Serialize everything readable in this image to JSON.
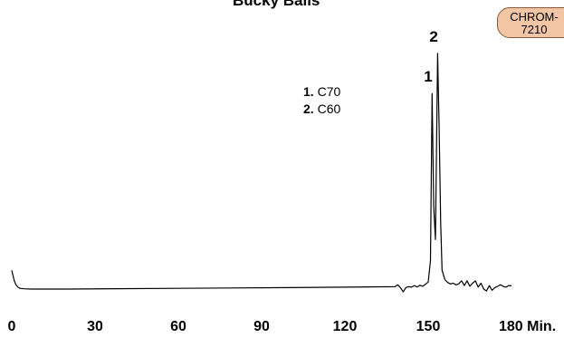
{
  "chart_data": {
    "type": "line",
    "title": "Bucky Balls",
    "badge": {
      "line1": "CHROM-",
      "line2": "7210"
    },
    "xlabel": "Min.",
    "xlim": [
      0,
      180
    ],
    "ylim": [
      0,
      100
    ],
    "x_ticks": [
      0,
      30,
      60,
      90,
      120,
      150,
      180
    ],
    "x_tick_labels": [
      "0",
      "30",
      "60",
      "90",
      "120",
      "150",
      "180 Min."
    ],
    "grid": false,
    "peaks": [
      {
        "label": "1",
        "compound": "C70",
        "x": 151.4,
        "y": 83
      },
      {
        "label": "2",
        "compound": "C60",
        "x": 153.4,
        "y": 100
      }
    ],
    "legend": [
      {
        "num": "1.",
        "text": "C70"
      },
      {
        "num": "2.",
        "text": "C60"
      }
    ],
    "series": [
      {
        "x": [
          0,
          0.4,
          0.9,
          1.5,
          2.2,
          3,
          4.5,
          7,
          20,
          60,
          100,
          138,
          139,
          140,
          141,
          142,
          143,
          144,
          145,
          146,
          147,
          148,
          149,
          150,
          150.8,
          151.4,
          152,
          152.6,
          153,
          153.4,
          153.9,
          154.5,
          155,
          156,
          157,
          158,
          159,
          160,
          161,
          162,
          163,
          164,
          165,
          166,
          167,
          168,
          169,
          170,
          171,
          172,
          173,
          174,
          175,
          176,
          177,
          178,
          179,
          180
        ],
        "y": [
          8,
          6,
          3.5,
          1.8,
          0.8,
          0.3,
          0.1,
          0,
          0,
          0.3,
          0.6,
          1,
          1.8,
          0.6,
          -1.2,
          0.7,
          1,
          0.8,
          1.5,
          0.9,
          1.6,
          1.2,
          2,
          3,
          12,
          83,
          35,
          21,
          60,
          100,
          70,
          28,
          8,
          4,
          2.8,
          2.2,
          2.5,
          1.8,
          2.2,
          3.5,
          1.5,
          3.5,
          1.2,
          2.5,
          3.5,
          0.8,
          2.5,
          0,
          -0.8,
          1.5,
          -0.5,
          0.6,
          1.2,
          1.8,
          1.2,
          0.8,
          1.5,
          1.4
        ]
      }
    ]
  }
}
